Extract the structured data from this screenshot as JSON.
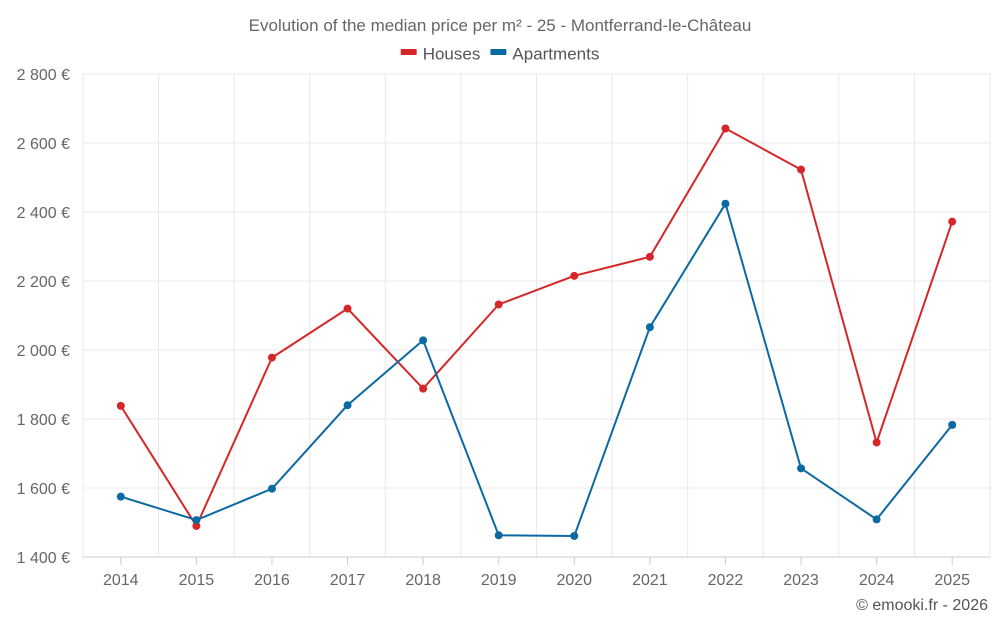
{
  "chart_data": {
    "type": "line",
    "title": "Evolution of the median price per m² - 25 - Montferrand-le-Château",
    "categories": [
      "2014",
      "2015",
      "2016",
      "2017",
      "2018",
      "2019",
      "2020",
      "2021",
      "2022",
      "2023",
      "2024",
      "2025"
    ],
    "series": [
      {
        "name": "Houses",
        "color": "#d62728",
        "values": [
          1838,
          1490,
          1978,
          2120,
          1888,
          2132,
          2215,
          2270,
          2642,
          2523,
          1732,
          2372
        ]
      },
      {
        "name": "Apartments",
        "color": "#0b6aa2",
        "values": [
          1575,
          1507,
          1598,
          1840,
          2028,
          1463,
          1461,
          2066,
          2424,
          1657,
          1509,
          1783
        ]
      }
    ],
    "ylim": [
      1400,
      2800
    ],
    "y_ticks": [
      1400,
      1600,
      1800,
      2000,
      2200,
      2400,
      2600,
      2800
    ],
    "y_tick_labels": [
      "1 400 €",
      "1 600 €",
      "1 800 €",
      "2 000 €",
      "2 200 €",
      "2 400 €",
      "2 600 €",
      "2 800 €"
    ],
    "xlabel": "",
    "ylabel": "",
    "grid": true,
    "legend_position": "top-center"
  },
  "credit": "© emooki.fr - 2026"
}
